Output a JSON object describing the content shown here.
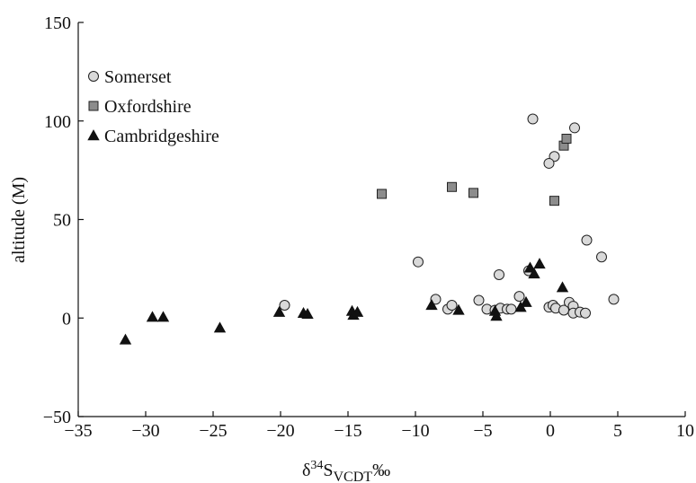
{
  "chart_data": {
    "type": "scatter",
    "xlabel_main": "δ",
    "xlabel_sup": "34",
    "xlabel_s": "S",
    "xlabel_sub": "VCDT",
    "xlabel_unit": "‰",
    "ylabel": "altitude (M)",
    "xlim": [
      -35,
      10
    ],
    "ylim": [
      -50,
      150
    ],
    "xticks": [
      -35,
      -30,
      -25,
      -20,
      -15,
      -10,
      -5,
      0,
      5,
      10
    ],
    "yticks": [
      -50,
      0,
      50,
      100,
      150
    ],
    "xtick_labels": [
      "−35",
      "−30",
      "−25",
      "−20",
      "−15",
      "−10",
      "−5",
      "0",
      "5",
      "10"
    ],
    "ytick_labels": [
      "−50",
      "0",
      "50",
      "100",
      "150"
    ],
    "grid": false,
    "legend_position": "top-left",
    "series": [
      {
        "name": "Somerset",
        "marker": "circle",
        "color": "#d9d9d9",
        "points": [
          [
            -19.7,
            6.5
          ],
          [
            -9.8,
            28.5
          ],
          [
            -8.5,
            9.5
          ],
          [
            -7.6,
            4.5
          ],
          [
            -7.3,
            6.5
          ],
          [
            -5.3,
            9
          ],
          [
            -4.7,
            4.5
          ],
          [
            -4.1,
            4
          ],
          [
            -3.8,
            22
          ],
          [
            -3.7,
            5
          ],
          [
            -3.2,
            4.5
          ],
          [
            -2.9,
            4.5
          ],
          [
            -2.3,
            11
          ],
          [
            -1.6,
            24
          ],
          [
            -1.3,
            101
          ],
          [
            -0.1,
            5.5
          ],
          [
            0.2,
            6.5
          ],
          [
            0.4,
            5
          ],
          [
            0.3,
            82
          ],
          [
            -0.1,
            78.5
          ],
          [
            1.0,
            4
          ],
          [
            1.4,
            8
          ],
          [
            1.7,
            6
          ],
          [
            1.7,
            2.5
          ],
          [
            2.2,
            3
          ],
          [
            2.6,
            2.5
          ],
          [
            1.8,
            96.5
          ],
          [
            2.7,
            39.5
          ],
          [
            3.8,
            31
          ],
          [
            4.7,
            9.5
          ]
        ]
      },
      {
        "name": "Oxfordshire",
        "marker": "square",
        "color": "#8c8c8c",
        "points": [
          [
            -12.5,
            63
          ],
          [
            -7.3,
            66.5
          ],
          [
            -5.7,
            63.5
          ],
          [
            0.3,
            59.5
          ],
          [
            1.0,
            87.5
          ],
          [
            1.2,
            91
          ]
        ]
      },
      {
        "name": "Cambridgeshire",
        "marker": "triangle",
        "color": "#111111",
        "points": [
          [
            -31.5,
            -11
          ],
          [
            -29.5,
            0.5
          ],
          [
            -28.7,
            0.5
          ],
          [
            -24.5,
            -5
          ],
          [
            -20.1,
            3
          ],
          [
            -18.3,
            2.5
          ],
          [
            -18.0,
            2
          ],
          [
            -14.7,
            3.5
          ],
          [
            -14.6,
            1.5
          ],
          [
            -14.3,
            3
          ],
          [
            -8.8,
            6.5
          ],
          [
            -6.8,
            4
          ],
          [
            -4.1,
            3.5
          ],
          [
            -4.0,
            1
          ],
          [
            -2.2,
            5.5
          ],
          [
            -1.8,
            8
          ],
          [
            -1.5,
            25.5
          ],
          [
            -1.2,
            22.5
          ],
          [
            -0.8,
            27.5
          ],
          [
            0.9,
            15.5
          ]
        ]
      }
    ]
  }
}
